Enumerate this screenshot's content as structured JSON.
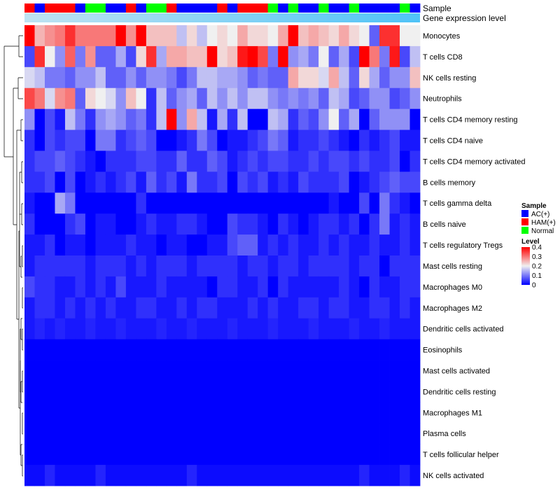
{
  "chart_data": {
    "type": "heatmap",
    "title": "",
    "annotation_labels": [
      "Sample",
      "Gene expression level"
    ],
    "samples": [
      "HAM(+)",
      "AC(+)",
      "HAM(+)",
      "HAM(+)",
      "HAM(+)",
      "AC(+)",
      "Normal",
      "Normal",
      "AC(+)",
      "AC(+)",
      "HAM(+)",
      "AC(+)",
      "Normal",
      "Normal",
      "HAM(+)",
      "AC(+)",
      "AC(+)",
      "AC(+)",
      "AC(+)",
      "HAM(+)",
      "AC(+)",
      "HAM(+)",
      "HAM(+)",
      "HAM(+)",
      "Normal",
      "AC(+)",
      "Normal",
      "AC(+)",
      "AC(+)",
      "Normal",
      "AC(+)",
      "AC(+)",
      "Normal",
      "AC(+)",
      "AC(+)",
      "AC(+)",
      "AC(+)",
      "Normal",
      "AC(+)"
    ],
    "rows": [
      {
        "name": "Monocytes",
        "values": [
          0.4,
          0.25,
          0.28,
          0.3,
          0.36,
          0.3,
          0.3,
          0.3,
          0.3,
          0.4,
          0.28,
          0.4,
          0.24,
          0.24,
          0.24,
          0.16,
          0.22,
          0.16,
          0.2,
          0.22,
          0.2,
          0.26,
          0.22,
          0.22,
          0.2,
          0.26,
          0.4,
          0.24,
          0.26,
          0.24,
          0.22,
          0.26,
          0.22,
          0.2,
          0.08,
          0.36,
          0.36,
          0.2,
          0.2
        ]
      },
      {
        "name": "T cells CD8",
        "values": [
          0.06,
          0.36,
          0.2,
          0.12,
          0.32,
          0.1,
          0.28,
          0.08,
          0.08,
          0.14,
          0.06,
          0.22,
          0.36,
          0.14,
          0.26,
          0.26,
          0.24,
          0.24,
          0.4,
          0.22,
          0.24,
          0.38,
          0.4,
          0.34,
          0.1,
          0.4,
          0.12,
          0.14,
          0.1,
          0.2,
          0.08,
          0.14,
          0.06,
          0.4,
          0.3,
          0.1,
          0.38,
          0.06,
          0.16
        ]
      },
      {
        "name": "NK cells resting",
        "values": [
          0.18,
          0.16,
          0.1,
          0.1,
          0.08,
          0.12,
          0.12,
          0.16,
          0.08,
          0.08,
          0.12,
          0.08,
          0.12,
          0.12,
          0.1,
          0.06,
          0.1,
          0.16,
          0.16,
          0.14,
          0.14,
          0.12,
          0.08,
          0.1,
          0.08,
          0.08,
          0.26,
          0.22,
          0.22,
          0.18,
          0.26,
          0.16,
          0.08,
          0.22,
          0.14,
          0.08,
          0.12,
          0.12,
          0.24
        ]
      },
      {
        "name": "Neutrophils",
        "values": [
          0.34,
          0.3,
          0.18,
          0.28,
          0.3,
          0.08,
          0.22,
          0.2,
          0.18,
          0.12,
          0.24,
          0.2,
          0.04,
          0.16,
          0.08,
          0.12,
          0.14,
          0.08,
          0.16,
          0.12,
          0.16,
          0.12,
          0.16,
          0.16,
          0.12,
          0.1,
          0.12,
          0.1,
          0.12,
          0.08,
          0.16,
          0.14,
          0.06,
          0.08,
          0.12,
          0.12,
          0.06,
          0.08,
          0.12
        ]
      },
      {
        "name": "T cells CD4 memory resting",
        "values": [
          0.12,
          0.0,
          0.06,
          0.02,
          0.16,
          0.1,
          0.04,
          0.12,
          0.14,
          0.12,
          0.08,
          0.1,
          0.04,
          0.16,
          0.42,
          0.12,
          0.26,
          0.16,
          0.02,
          0.14,
          0.04,
          0.16,
          0.0,
          0.0,
          0.16,
          0.14,
          0.04,
          0.08,
          0.06,
          0.12,
          0.2,
          0.08,
          0.14,
          0.0,
          0.08,
          0.12,
          0.12,
          0.12,
          0.0
        ]
      },
      {
        "name": "T cells CD4 naive",
        "values": [
          0.04,
          0.0,
          0.06,
          0.04,
          0.06,
          0.06,
          0.0,
          0.1,
          0.1,
          0.04,
          0.06,
          0.08,
          0.06,
          0.0,
          0.0,
          0.02,
          0.04,
          0.1,
          0.06,
          0.0,
          0.02,
          0.02,
          0.04,
          0.06,
          0.1,
          0.08,
          0.02,
          0.04,
          0.04,
          0.06,
          0.04,
          0.02,
          0.0,
          0.04,
          0.02,
          0.04,
          0.06,
          0.02,
          0.02
        ]
      },
      {
        "name": "T cells CD4 memory activated",
        "values": [
          0.04,
          0.06,
          0.06,
          0.08,
          0.06,
          0.04,
          0.02,
          0.0,
          0.04,
          0.04,
          0.04,
          0.06,
          0.06,
          0.04,
          0.04,
          0.08,
          0.04,
          0.04,
          0.08,
          0.06,
          0.02,
          0.04,
          0.06,
          0.04,
          0.06,
          0.06,
          0.04,
          0.04,
          0.06,
          0.04,
          0.06,
          0.06,
          0.04,
          0.06,
          0.04,
          0.04,
          0.06,
          0.0,
          0.04
        ]
      },
      {
        "name": "B cells memory",
        "values": [
          0.04,
          0.04,
          0.06,
          0.0,
          0.06,
          0.0,
          0.02,
          0.04,
          0.02,
          0.04,
          0.06,
          0.02,
          0.08,
          0.04,
          0.06,
          0.02,
          0.1,
          0.04,
          0.04,
          0.06,
          0.0,
          0.06,
          0.04,
          0.06,
          0.02,
          0.04,
          0.02,
          0.06,
          0.04,
          0.04,
          0.04,
          0.06,
          0.0,
          0.02,
          0.04,
          0.06,
          0.08,
          0.06,
          0.06
        ]
      },
      {
        "name": "T cells gamma delta",
        "values": [
          0.02,
          0.0,
          0.0,
          0.14,
          0.1,
          0.0,
          0.0,
          0.0,
          0.0,
          0.0,
          0.0,
          0.04,
          0.0,
          0.0,
          0.0,
          0.0,
          0.0,
          0.0,
          0.0,
          0.0,
          0.0,
          0.0,
          0.0,
          0.0,
          0.0,
          0.0,
          0.0,
          0.0,
          0.0,
          0.0,
          0.02,
          0.0,
          0.0,
          0.06,
          0.0,
          0.1,
          0.04,
          0.02,
          0.0
        ]
      },
      {
        "name": "B cells naive",
        "values": [
          0.04,
          0.0,
          0.0,
          0.0,
          0.04,
          0.06,
          0.0,
          0.02,
          0.02,
          0.0,
          0.0,
          0.02,
          0.04,
          0.02,
          0.02,
          0.04,
          0.04,
          0.02,
          0.0,
          0.0,
          0.06,
          0.04,
          0.04,
          0.02,
          0.0,
          0.04,
          0.02,
          0.0,
          0.02,
          0.04,
          0.04,
          0.02,
          0.04,
          0.0,
          0.04,
          0.1,
          0.02,
          0.04,
          0.02
        ]
      },
      {
        "name": "T cells regulatory  Tregs",
        "values": [
          0.02,
          0.02,
          0.04,
          0.0,
          0.02,
          0.02,
          0.0,
          0.02,
          0.02,
          0.02,
          0.04,
          0.02,
          0.02,
          0.0,
          0.02,
          0.02,
          0.0,
          0.0,
          0.02,
          0.02,
          0.06,
          0.08,
          0.08,
          0.02,
          0.04,
          0.02,
          0.04,
          0.02,
          0.02,
          0.04,
          0.02,
          0.04,
          0.02,
          0.02,
          0.04,
          0.02,
          0.02,
          0.04,
          0.02
        ]
      },
      {
        "name": "Mast cells resting",
        "values": [
          0.02,
          0.04,
          0.04,
          0.04,
          0.04,
          0.04,
          0.02,
          0.04,
          0.04,
          0.04,
          0.02,
          0.04,
          0.02,
          0.04,
          0.04,
          0.04,
          0.02,
          0.04,
          0.04,
          0.04,
          0.04,
          0.02,
          0.04,
          0.04,
          0.02,
          0.04,
          0.04,
          0.02,
          0.04,
          0.04,
          0.04,
          0.04,
          0.02,
          0.04,
          0.04,
          0.0,
          0.04,
          0.04,
          0.04
        ]
      },
      {
        "name": "Macrophages M0",
        "values": [
          0.06,
          0.04,
          0.04,
          0.02,
          0.02,
          0.04,
          0.02,
          0.04,
          0.02,
          0.06,
          0.02,
          0.02,
          0.02,
          0.04,
          0.02,
          0.02,
          0.02,
          0.02,
          0.0,
          0.04,
          0.04,
          0.02,
          0.02,
          0.04,
          0.0,
          0.04,
          0.02,
          0.02,
          0.02,
          0.02,
          0.02,
          0.04,
          0.02,
          0.0,
          0.04,
          0.02,
          0.02,
          0.04,
          0.04
        ]
      },
      {
        "name": "Macrophages M2",
        "values": [
          0.02,
          0.04,
          0.04,
          0.02,
          0.04,
          0.02,
          0.04,
          0.02,
          0.04,
          0.02,
          0.02,
          0.04,
          0.04,
          0.02,
          0.02,
          0.04,
          0.02,
          0.04,
          0.04,
          0.02,
          0.02,
          0.02,
          0.04,
          0.02,
          0.04,
          0.02,
          0.02,
          0.04,
          0.04,
          0.02,
          0.04,
          0.04,
          0.02,
          0.02,
          0.04,
          0.04,
          0.02,
          0.04,
          0.02
        ]
      },
      {
        "name": "Dendritic cells activated",
        "values": [
          0.02,
          0.03,
          0.02,
          0.03,
          0.02,
          0.02,
          0.03,
          0.02,
          0.02,
          0.03,
          0.02,
          0.02,
          0.02,
          0.03,
          0.02,
          0.02,
          0.03,
          0.02,
          0.02,
          0.02,
          0.03,
          0.02,
          0.02,
          0.02,
          0.03,
          0.02,
          0.02,
          0.02,
          0.03,
          0.02,
          0.02,
          0.02,
          0.03,
          0.02,
          0.02,
          0.03,
          0.02,
          0.02,
          0.02
        ]
      },
      {
        "name": "Eosinophils",
        "values": [
          0,
          0,
          0,
          0,
          0,
          0,
          0,
          0,
          0,
          0,
          0,
          0,
          0,
          0,
          0,
          0,
          0,
          0,
          0,
          0,
          0,
          0,
          0,
          0,
          0,
          0,
          0,
          0,
          0,
          0,
          0,
          0,
          0,
          0,
          0,
          0,
          0,
          0,
          0
        ]
      },
      {
        "name": "Mast cells activated",
        "values": [
          0,
          0,
          0,
          0,
          0,
          0,
          0,
          0,
          0,
          0,
          0,
          0,
          0,
          0,
          0,
          0,
          0,
          0,
          0,
          0,
          0,
          0,
          0,
          0,
          0,
          0,
          0,
          0,
          0,
          0,
          0,
          0,
          0,
          0,
          0,
          0,
          0,
          0,
          0
        ]
      },
      {
        "name": "Dendritic cells resting",
        "values": [
          0,
          0,
          0,
          0,
          0,
          0,
          0,
          0,
          0,
          0,
          0,
          0,
          0,
          0,
          0,
          0,
          0,
          0,
          0,
          0,
          0,
          0,
          0,
          0,
          0,
          0,
          0,
          0,
          0,
          0,
          0,
          0,
          0,
          0,
          0,
          0,
          0,
          0,
          0
        ]
      },
      {
        "name": "Macrophages M1",
        "values": [
          0,
          0,
          0,
          0,
          0,
          0,
          0,
          0,
          0,
          0,
          0,
          0,
          0,
          0,
          0,
          0,
          0,
          0,
          0,
          0,
          0,
          0,
          0,
          0,
          0,
          0,
          0,
          0,
          0,
          0,
          0,
          0,
          0,
          0,
          0,
          0,
          0,
          0,
          0
        ]
      },
      {
        "name": "Plasma cells",
        "values": [
          0,
          0,
          0,
          0,
          0,
          0,
          0,
          0,
          0,
          0,
          0,
          0,
          0,
          0,
          0,
          0,
          0,
          0,
          0,
          0,
          0,
          0,
          0,
          0,
          0,
          0,
          0,
          0,
          0,
          0,
          0,
          0,
          0,
          0,
          0,
          0,
          0,
          0,
          0
        ]
      },
      {
        "name": "T cells follicular helper",
        "values": [
          0,
          0,
          0,
          0,
          0,
          0,
          0,
          0,
          0,
          0,
          0,
          0,
          0,
          0,
          0,
          0,
          0,
          0,
          0,
          0,
          0,
          0,
          0,
          0,
          0,
          0,
          0,
          0,
          0,
          0,
          0,
          0,
          0,
          0,
          0,
          0,
          0,
          0,
          0
        ]
      },
      {
        "name": "NK cells activated",
        "values": [
          0.01,
          0.01,
          0.03,
          0.01,
          0.01,
          0.01,
          0.01,
          0.03,
          0.01,
          0.01,
          0.01,
          0.01,
          0.01,
          0.01,
          0.01,
          0.01,
          0.03,
          0.01,
          0.01,
          0.01,
          0.01,
          0.01,
          0.01,
          0.01,
          0.01,
          0.01,
          0.01,
          0.01,
          0.01,
          0.01,
          0.01,
          0.01,
          0.01,
          0.03,
          0.01,
          0.01,
          0.01,
          0.03,
          0.01
        ]
      }
    ],
    "color_scale": {
      "min": 0,
      "max": 0.4,
      "stops": [
        {
          "value": 0.0,
          "color": "#0000ff"
        },
        {
          "value": 0.2,
          "color": "#f0f0f0"
        },
        {
          "value": 0.4,
          "color": "#ff0000"
        }
      ]
    },
    "legend": {
      "sample_title": "Sample",
      "sample_items": [
        {
          "label": "AC(+)",
          "color": "#0000ff"
        },
        {
          "label": "HAM(+)",
          "color": "#ff0000"
        },
        {
          "label": "Normal",
          "color": "#00ff00"
        }
      ],
      "level_title": "Level",
      "level_ticks": [
        {
          "value": 0.4,
          "label": "0.4"
        },
        {
          "value": 0.3,
          "label": "0.3"
        },
        {
          "value": 0.2,
          "label": "0.2"
        },
        {
          "value": 0.1,
          "label": "0.1"
        },
        {
          "value": 0,
          "label": "0"
        }
      ],
      "placement": "right"
    },
    "expression_bar_colors": [
      "#add8e6",
      "#4fc3f7"
    ]
  }
}
